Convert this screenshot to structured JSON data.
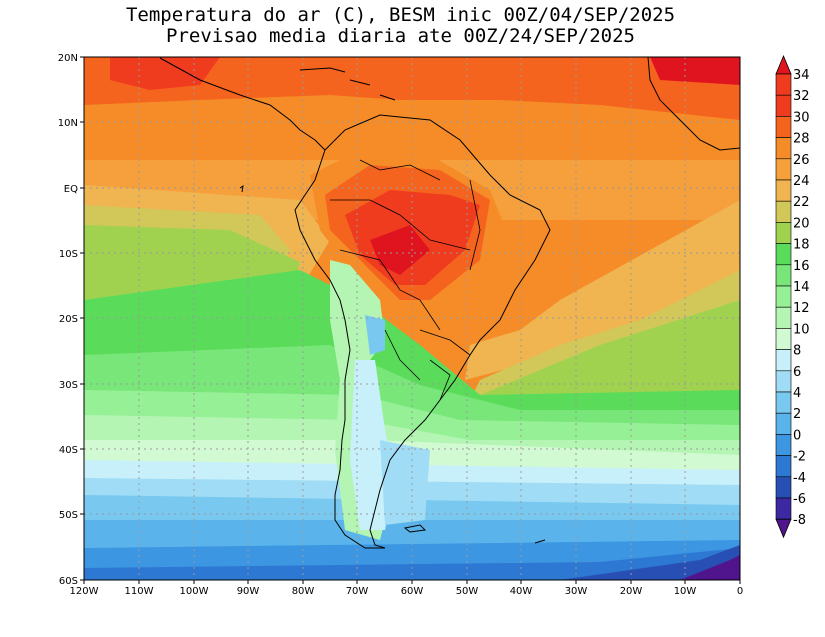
{
  "title": {
    "line1": "Temperatura do ar (C), BESM inic 00Z/04/SEP/2025",
    "line2": "Previsao media diaria ate 00Z/24/SEP/2025"
  },
  "map": {
    "lon_labels": [
      "120W",
      "110W",
      "100W",
      "90W",
      "80W",
      "70W",
      "60W",
      "50W",
      "40W",
      "30W",
      "20W",
      "10W",
      "0"
    ],
    "lat_labels": [
      "20N",
      "10N",
      "EQ",
      "10S",
      "20S",
      "30S",
      "40S",
      "50S",
      "60S"
    ]
  },
  "colorbar": {
    "labels": [
      "34",
      "32",
      "30",
      "28",
      "26",
      "24",
      "22",
      "20",
      "18",
      "16",
      "14",
      "12",
      "10",
      "8",
      "6",
      "4",
      "2",
      "0",
      "-2",
      "-4",
      "-6",
      "-8"
    ],
    "colors": {
      "above_34": "#e0141e",
      "32": "#f03c1e",
      "30": "#f5641e",
      "28": "#f58c28",
      "26": "#f5a03c",
      "24": "#f0b450",
      "22": "#d2c85a",
      "20": "#a0d250",
      "18": "#5adc5a",
      "16": "#78e678",
      "14": "#96f096",
      "12": "#b4f5b4",
      "10": "#d2fad2",
      "8": "#c8f0fa",
      "6": "#a0dcf5",
      "4": "#78c8f0",
      "2": "#5ab4eb",
      "0": "#3c96e1",
      "-2": "#2d78d2",
      "-4": "#2850b4",
      "-6": "#3c28a0",
      "below_-8": "#50148c"
    }
  }
}
